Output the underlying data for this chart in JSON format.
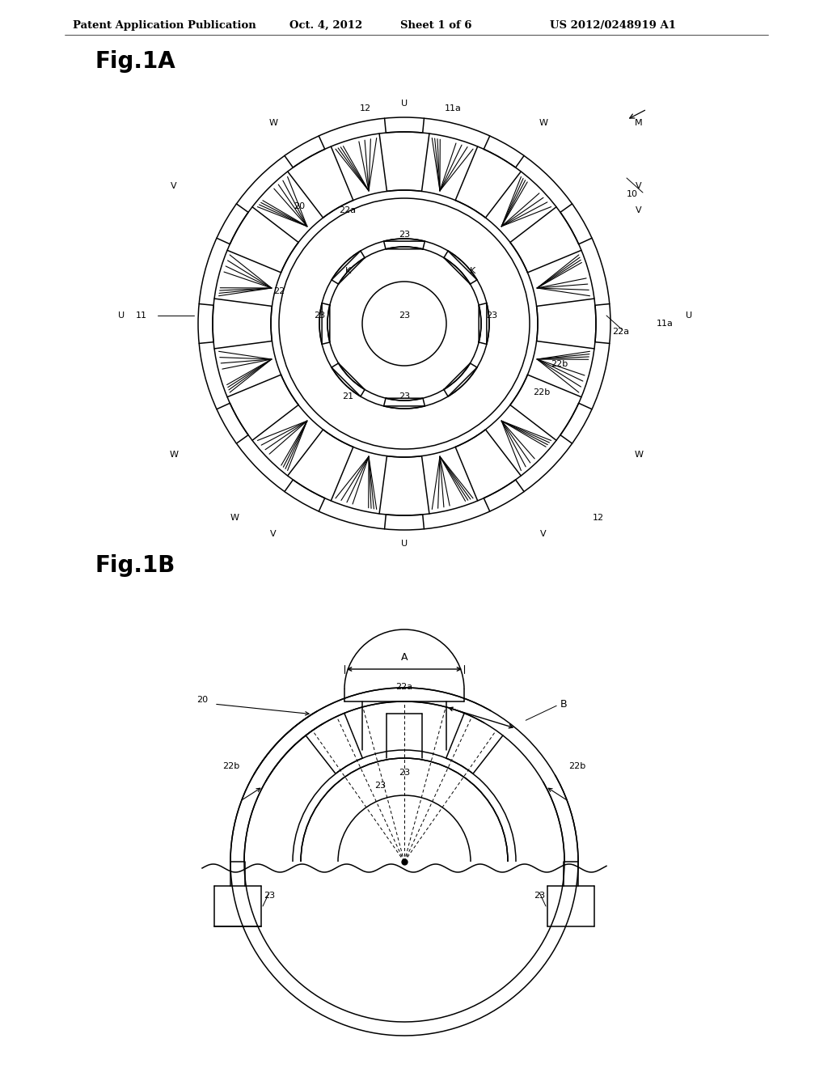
{
  "background_color": "#ffffff",
  "header_text": "Patent Application Publication",
  "header_date": "Oct. 4, 2012",
  "header_sheet": "Sheet 1 of 6",
  "header_patent": "US 2012/0248919 A1",
  "fig1a_title": "Fig.1A",
  "fig1b_title": "Fig.1B",
  "line_color": "#000000",
  "lw": 1.1
}
